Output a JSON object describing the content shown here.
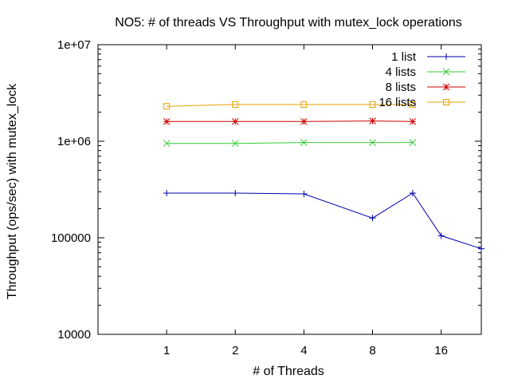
{
  "chart_data": {
    "type": "line",
    "title": "NO5: # of threads VS Throughput with mutex_lock operations",
    "xlabel": "# of Threads",
    "ylabel": "Throughput (ops/sec) with mutex_lock",
    "x_scale": "log2",
    "y_scale": "log10",
    "xlim": [
      0.5,
      24
    ],
    "ylim": [
      10000,
      10000000
    ],
    "x_ticks": [
      {
        "value": 1,
        "label": "1"
      },
      {
        "value": 2,
        "label": "2"
      },
      {
        "value": 4,
        "label": "4"
      },
      {
        "value": 8,
        "label": "8"
      },
      {
        "value": 16,
        "label": "16"
      }
    ],
    "y_ticks": [
      {
        "value": 10000,
        "label": "10000"
      },
      {
        "value": 100000,
        "label": "100000"
      },
      {
        "value": 1000000,
        "label": "1e+06"
      },
      {
        "value": 10000000,
        "label": "1e+07"
      }
    ],
    "grid": false,
    "legend_position": "top-right",
    "series": [
      {
        "name": "1 list",
        "color": "#0000aa",
        "marker": "plus",
        "x": [
          1,
          2,
          4,
          8,
          12,
          16,
          24
        ],
        "y": [
          290000,
          290000,
          285000,
          160000,
          290000,
          105000,
          77000
        ]
      },
      {
        "name": "4 lists",
        "color": "#33cc33",
        "marker": "cross",
        "x": [
          1,
          2,
          4,
          8,
          12
        ],
        "y": [
          950000,
          950000,
          970000,
          970000,
          970000
        ]
      },
      {
        "name": "8 lists",
        "color": "#cc0000",
        "marker": "star",
        "x": [
          1,
          2,
          4,
          8,
          12
        ],
        "y": [
          1600000,
          1600000,
          1600000,
          1620000,
          1600000
        ]
      },
      {
        "name": "16 lists",
        "color": "#e6a100",
        "marker": "square",
        "x": [
          1,
          2,
          4,
          8,
          12
        ],
        "y": [
          2300000,
          2400000,
          2400000,
          2400000,
          2400000
        ]
      }
    ]
  }
}
